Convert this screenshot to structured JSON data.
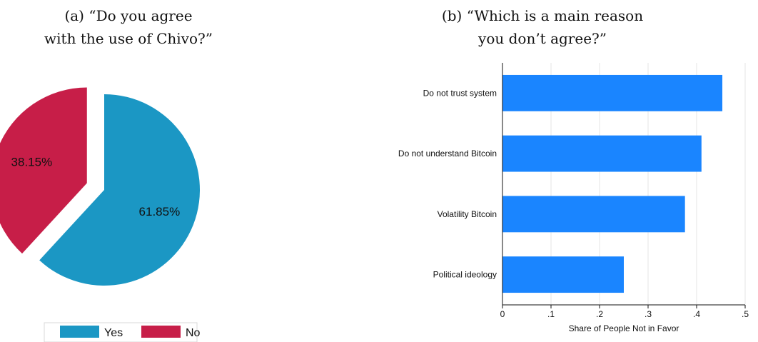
{
  "chart_data": [
    {
      "type": "pie",
      "title_lines": [
        "(a) “Do you agree",
        "with the use of Chivo?”"
      ],
      "slices": [
        {
          "label": "Yes",
          "value": 61.85,
          "display": "61.85%",
          "color": "#1b97c4",
          "exploded": false
        },
        {
          "label": "No",
          "value": 38.15,
          "display": "38.15%",
          "color": "#c71e48",
          "exploded": true
        }
      ],
      "legend": {
        "position": "bottom",
        "entries": [
          "Yes",
          "No"
        ]
      }
    },
    {
      "type": "bar",
      "orientation": "horizontal",
      "title_lines": [
        "(b) “Which is a main reason",
        "you don’t agree?”"
      ],
      "categories": [
        "Do not trust system",
        "Do not understand Bitcoin",
        "Volatility Bitcoin",
        "Political ideology"
      ],
      "values": [
        0.453,
        0.41,
        0.376,
        0.25
      ],
      "color": "#1a85ff",
      "xlabel": "Share of People Not in Favor",
      "ylabel": "",
      "xlim": [
        0,
        0.5
      ],
      "xticks": [
        0,
        0.1,
        0.2,
        0.3,
        0.4,
        0.5
      ],
      "xtick_labels": [
        "0",
        ".1",
        ".2",
        ".3",
        ".4",
        ".5"
      ],
      "grid": true
    }
  ]
}
